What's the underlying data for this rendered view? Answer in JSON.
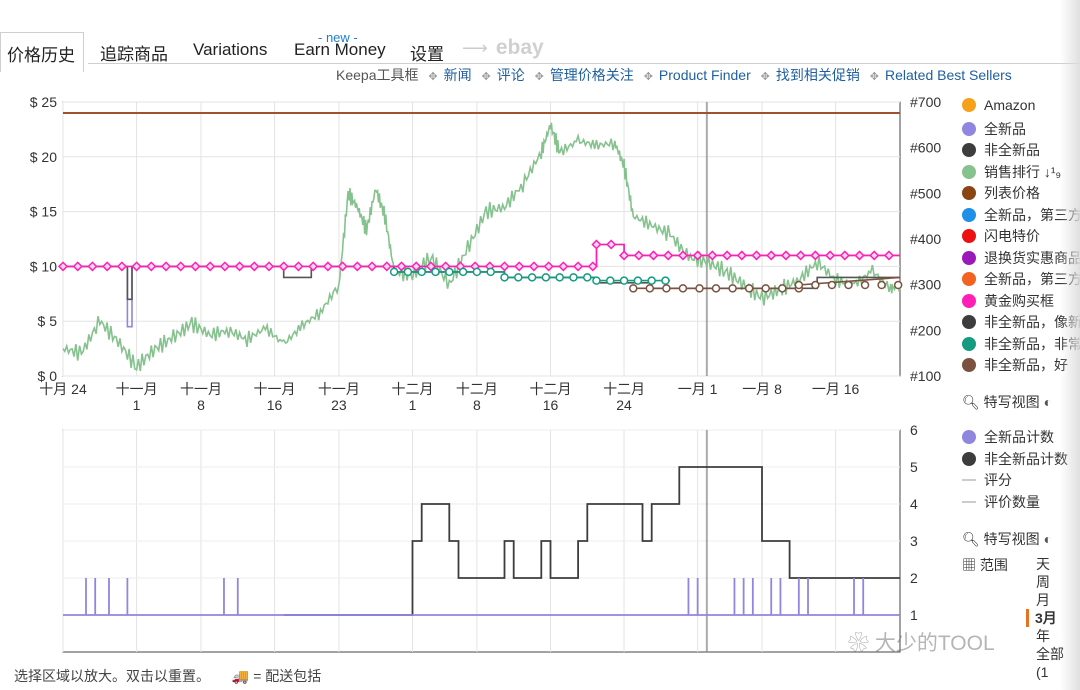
{
  "tabs": [
    "价格历史",
    "追踪商品",
    "Variations",
    "Earn Money",
    "设置"
  ],
  "new_badge": "- new -",
  "ebay_label": "ebay",
  "links": [
    "Keepa工具框",
    "新闻",
    "评论",
    "管理价格关注",
    "Product Finder",
    "找到相关促销",
    "Related Best Sellers"
  ],
  "legend_top": [
    {
      "label": "Amazon",
      "color": "#f5a11c"
    },
    {
      "label": "全新品",
      "color": "#8f86e0"
    },
    {
      "label": "非全新品",
      "color": "#3d3d3d"
    },
    {
      "label": "销售排行 ↓¹₉",
      "color": "#86c28e"
    },
    {
      "label": "列表价格",
      "color": "#8b4513"
    },
    {
      "label": "全新品，第三方",
      "color": "#1e90e8"
    },
    {
      "label": "闪电特价",
      "color": "#ee1010"
    },
    {
      "label": "退换货实惠商品",
      "color": "#9b19b9"
    },
    {
      "label": "全新品，第三方",
      "color": "#f26322"
    },
    {
      "label": "黄金购买框",
      "color": "#ff1fb5"
    },
    {
      "label": "非全新品，像新品",
      "color": "#3d3d3d"
    },
    {
      "label": "非全新品，非常好",
      "color": "#149b80"
    },
    {
      "label": "非全新品，好",
      "color": "#7b5140"
    }
  ],
  "zoom_label": "特写视图",
  "legend_bottom": [
    {
      "label": "全新品计数",
      "color": "#8f86e0",
      "kind": "dot"
    },
    {
      "label": "非全新品计数",
      "color": "#3d3d3d",
      "kind": "dot"
    },
    {
      "label": "评分",
      "color": "#cccccc",
      "kind": "dash"
    },
    {
      "label": "评价数量",
      "color": "#cccccc",
      "kind": "dash"
    }
  ],
  "range_label": "范围",
  "range_options": [
    "天",
    "周",
    "月",
    "3月",
    "年",
    "全部 (1"
  ],
  "range_selected": "3月",
  "footer_text": "选择区域以放大。双击以重置。",
  "shipping_note": "= 配送包括",
  "watermark": "大少的TOOL",
  "chart_data": [
    {
      "type": "line",
      "x_ticks": [
        "十月 24",
        "十一月\n1",
        "十一月\n8",
        "十一月\n16",
        "十一月\n23",
        "十二月\n1",
        "十二月\n8",
        "十二月\n16",
        "十二月\n24",
        "一月 1",
        "一月 8",
        "一月 16"
      ],
      "x_tick_days": [
        0,
        8,
        15,
        23,
        30,
        38,
        45,
        53,
        61,
        69,
        76,
        84
      ],
      "x_range": [
        0,
        91
      ],
      "y_left_ticks": [
        "$ 0",
        "$ 5",
        "$ 10",
        "$ 15",
        "$ 20",
        "$ 25"
      ],
      "y_left_range": [
        0,
        25
      ],
      "y_right_ticks": [
        "#100",
        "#200",
        "#300",
        "#400",
        "#500",
        "#600",
        "#700"
      ],
      "y_right_range": [
        100,
        700
      ],
      "marker_day": 70,
      "series": [
        {
          "name": "列表价格",
          "color": "#a0522d",
          "points": [
            [
              0,
              24
            ],
            [
              91,
              24
            ]
          ]
        },
        {
          "name": "全新品",
          "color": "#8f86e0",
          "points": [
            [
              0,
              10
            ],
            [
              7,
              10
            ],
            [
              7,
              4.5
            ],
            [
              7.5,
              4.5
            ],
            [
              7.5,
              10
            ],
            [
              58,
              10
            ],
            [
              58,
              12
            ],
            [
              61,
              12
            ],
            [
              61,
              11
            ],
            [
              91,
              11
            ]
          ]
        },
        {
          "name": "非全新品",
          "color": "#555555",
          "points": [
            [
              0,
              10
            ],
            [
              7,
              10
            ],
            [
              7,
              7
            ],
            [
              7.5,
              7
            ],
            [
              7.5,
              10
            ],
            [
              24,
              10
            ],
            [
              24,
              9
            ],
            [
              27,
              9
            ],
            [
              27,
              10
            ],
            [
              36,
              10
            ],
            [
              36,
              9.5
            ],
            [
              48,
              9.5
            ],
            [
              48,
              9
            ],
            [
              58,
              9
            ],
            [
              58,
              8.5
            ],
            [
              64,
              8.5
            ],
            [
              64,
              8
            ],
            [
              82,
              8
            ],
            [
              82,
              9
            ],
            [
              91,
              9
            ]
          ]
        },
        {
          "name": "黄金购买框",
          "color": "#ff1fb5",
          "points": [
            [
              0,
              10
            ],
            [
              58,
              10
            ],
            [
              58,
              12
            ],
            [
              61,
              12
            ],
            [
              61,
              11
            ],
            [
              91,
              11
            ]
          ]
        },
        {
          "name": "非全新品，非常好",
          "color": "#149b80",
          "points": [
            [
              36,
              9.5
            ],
            [
              48,
              9.5
            ],
            [
              48,
              9
            ],
            [
              58,
              9
            ],
            [
              58,
              8.7
            ],
            [
              66,
              8.7
            ]
          ]
        },
        {
          "name": "非全新品，好",
          "color": "#7b5140",
          "points": [
            [
              62,
              8
            ],
            [
              80,
              8
            ],
            [
              80,
              8.3
            ],
            [
              91,
              9
            ]
          ]
        },
        {
          "name": "销售排行",
          "color": "#86c28e",
          "axis": "right",
          "points": [
            [
              0,
              160
            ],
            [
              2,
              150
            ],
            [
              4,
              220
            ],
            [
              6,
              175
            ],
            [
              8,
              120
            ],
            [
              10,
              160
            ],
            [
              12,
              185
            ],
            [
              14,
              215
            ],
            [
              16,
              190
            ],
            [
              18,
              200
            ],
            [
              20,
              180
            ],
            [
              22,
              205
            ],
            [
              24,
              170
            ],
            [
              26,
              210
            ],
            [
              28,
              240
            ],
            [
              30,
              300
            ],
            [
              31,
              500
            ],
            [
              32,
              470
            ],
            [
              33,
              420
            ],
            [
              34,
              510
            ],
            [
              35,
              450
            ],
            [
              36,
              330
            ],
            [
              38,
              320
            ],
            [
              40,
              360
            ],
            [
              42,
              300
            ],
            [
              44,
              380
            ],
            [
              46,
              460
            ],
            [
              48,
              470
            ],
            [
              50,
              520
            ],
            [
              52,
              590
            ],
            [
              53,
              650
            ],
            [
              54,
              590
            ],
            [
              56,
              615
            ],
            [
              58,
              605
            ],
            [
              60,
              610
            ],
            [
              61,
              560
            ],
            [
              62,
              450
            ],
            [
              64,
              430
            ],
            [
              66,
              410
            ],
            [
              68,
              360
            ],
            [
              70,
              350
            ],
            [
              72,
              330
            ],
            [
              74,
              300
            ],
            [
              76,
              270
            ],
            [
              78,
              290
            ],
            [
              80,
              310
            ],
            [
              82,
              350
            ],
            [
              84,
              310
            ],
            [
              86,
              300
            ],
            [
              88,
              330
            ],
            [
              90,
              290
            ],
            [
              91,
              300
            ]
          ]
        }
      ]
    },
    {
      "type": "line",
      "y_right_ticks": [
        "1",
        "2",
        "3",
        "4",
        "5",
        "6"
      ],
      "y_range": [
        0,
        6
      ],
      "series": [
        {
          "name": "非全新品计数",
          "color": "#3d3d3d",
          "points": [
            [
              24,
              1
            ],
            [
              38,
              1
            ],
            [
              38,
              3
            ],
            [
              39,
              3
            ],
            [
              39,
              4
            ],
            [
              42,
              4
            ],
            [
              42,
              3
            ],
            [
              43,
              3
            ],
            [
              43,
              2
            ],
            [
              48,
              2
            ],
            [
              48,
              3
            ],
            [
              49,
              3
            ],
            [
              49,
              2
            ],
            [
              52,
              2
            ],
            [
              52,
              3
            ],
            [
              53,
              3
            ],
            [
              53,
              2
            ],
            [
              56,
              2
            ],
            [
              56,
              3
            ],
            [
              57,
              3
            ],
            [
              57,
              4
            ],
            [
              63,
              4
            ],
            [
              63,
              3
            ],
            [
              64,
              3
            ],
            [
              64,
              4
            ],
            [
              67,
              4
            ],
            [
              67,
              5
            ],
            [
              76,
              5
            ],
            [
              76,
              3
            ],
            [
              79,
              3
            ],
            [
              79,
              2
            ],
            [
              91,
              2
            ]
          ]
        },
        {
          "name": "全新品计数",
          "color": "#8f86e0",
          "points": [
            [
              0,
              1
            ],
            [
              91,
              1
            ]
          ]
        }
      ]
    }
  ]
}
